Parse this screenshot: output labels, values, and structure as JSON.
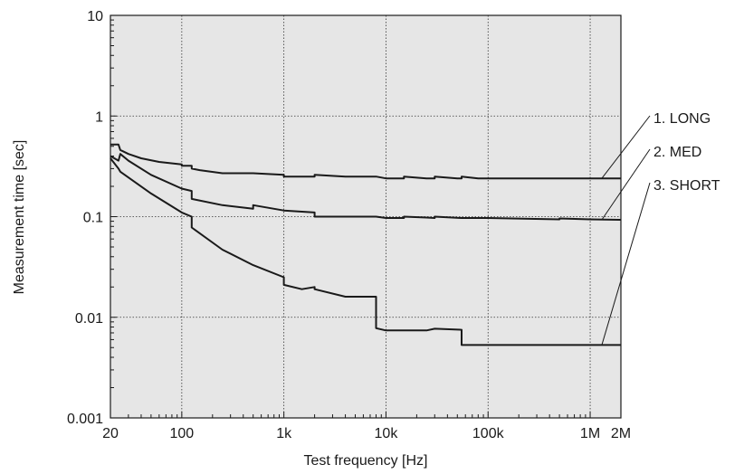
{
  "chart_data": {
    "type": "line",
    "xlabel": "Test frequency [Hz]",
    "ylabel": "Measurement time [sec]",
    "x_scale": "log",
    "y_scale": "log",
    "xlim": [
      20,
      2000000
    ],
    "ylim": [
      0.001,
      10
    ],
    "x_ticks": [
      {
        "value": 20,
        "label": "20"
      },
      {
        "value": 100,
        "label": "100"
      },
      {
        "value": 1000,
        "label": "1k"
      },
      {
        "value": 10000,
        "label": "10k"
      },
      {
        "value": 100000,
        "label": "100k"
      },
      {
        "value": 1000000,
        "label": "1M"
      },
      {
        "value": 2000000,
        "label": "2M"
      }
    ],
    "y_ticks": [
      {
        "value": 10,
        "label": "10"
      },
      {
        "value": 1,
        "label": "1"
      },
      {
        "value": 0.1,
        "label": "0.1"
      },
      {
        "value": 0.01,
        "label": "0.01"
      },
      {
        "value": 0.001,
        "label": "0.001"
      }
    ],
    "grid": "dotted, major decades",
    "plot_background": "#e6e6e6",
    "line_color": "#1a1a1a",
    "legend_placement": "right, with leader lines",
    "series": [
      {
        "name": "1. LONG",
        "points": [
          [
            20,
            0.52
          ],
          [
            24,
            0.52
          ],
          [
            25,
            0.46
          ],
          [
            30,
            0.42
          ],
          [
            40,
            0.38
          ],
          [
            60,
            0.35
          ],
          [
            100,
            0.33
          ],
          [
            100,
            0.32
          ],
          [
            125,
            0.32
          ],
          [
            125,
            0.3
          ],
          [
            150,
            0.29
          ],
          [
            250,
            0.27
          ],
          [
            500,
            0.27
          ],
          [
            1000,
            0.26
          ],
          [
            1000,
            0.25
          ],
          [
            2000,
            0.25
          ],
          [
            2000,
            0.26
          ],
          [
            4000,
            0.25
          ],
          [
            8000,
            0.25
          ],
          [
            10000,
            0.24
          ],
          [
            15000,
            0.24
          ],
          [
            15000,
            0.25
          ],
          [
            25000,
            0.24
          ],
          [
            30000,
            0.24
          ],
          [
            30000,
            0.25
          ],
          [
            50000,
            0.24
          ],
          [
            55000,
            0.24
          ],
          [
            55000,
            0.25
          ],
          [
            80000,
            0.24
          ],
          [
            100000,
            0.24
          ],
          [
            2000000,
            0.24
          ]
        ]
      },
      {
        "name": "2. MED",
        "points": [
          [
            20,
            0.4
          ],
          [
            24,
            0.36
          ],
          [
            25,
            0.42
          ],
          [
            30,
            0.36
          ],
          [
            50,
            0.26
          ],
          [
            100,
            0.19
          ],
          [
            125,
            0.18
          ],
          [
            125,
            0.15
          ],
          [
            250,
            0.13
          ],
          [
            500,
            0.12
          ],
          [
            500,
            0.13
          ],
          [
            1000,
            0.115
          ],
          [
            2000,
            0.11
          ],
          [
            2000,
            0.1
          ],
          [
            4000,
            0.1
          ],
          [
            8000,
            0.1
          ],
          [
            10000,
            0.097
          ],
          [
            15000,
            0.097
          ],
          [
            15000,
            0.1
          ],
          [
            25000,
            0.098
          ],
          [
            30000,
            0.097
          ],
          [
            30000,
            0.1
          ],
          [
            55000,
            0.097
          ],
          [
            100000,
            0.097
          ],
          [
            500000,
            0.094
          ],
          [
            500000,
            0.096
          ],
          [
            1000000,
            0.094
          ],
          [
            2000000,
            0.093
          ]
        ]
      },
      {
        "name": "3. SHORT",
        "points": [
          [
            20,
            0.38
          ],
          [
            24,
            0.3
          ],
          [
            25,
            0.28
          ],
          [
            50,
            0.17
          ],
          [
            100,
            0.11
          ],
          [
            125,
            0.1
          ],
          [
            125,
            0.078
          ],
          [
            250,
            0.047
          ],
          [
            500,
            0.033
          ],
          [
            1000,
            0.025
          ],
          [
            1000,
            0.021
          ],
          [
            1500,
            0.019
          ],
          [
            2000,
            0.02
          ],
          [
            2000,
            0.019
          ],
          [
            4000,
            0.016
          ],
          [
            8000,
            0.016
          ],
          [
            8000,
            0.0078
          ],
          [
            10000,
            0.0074
          ],
          [
            25000,
            0.0074
          ],
          [
            30000,
            0.0077
          ],
          [
            55000,
            0.0075
          ],
          [
            55000,
            0.0053
          ],
          [
            2000000,
            0.0053
          ]
        ]
      }
    ]
  }
}
